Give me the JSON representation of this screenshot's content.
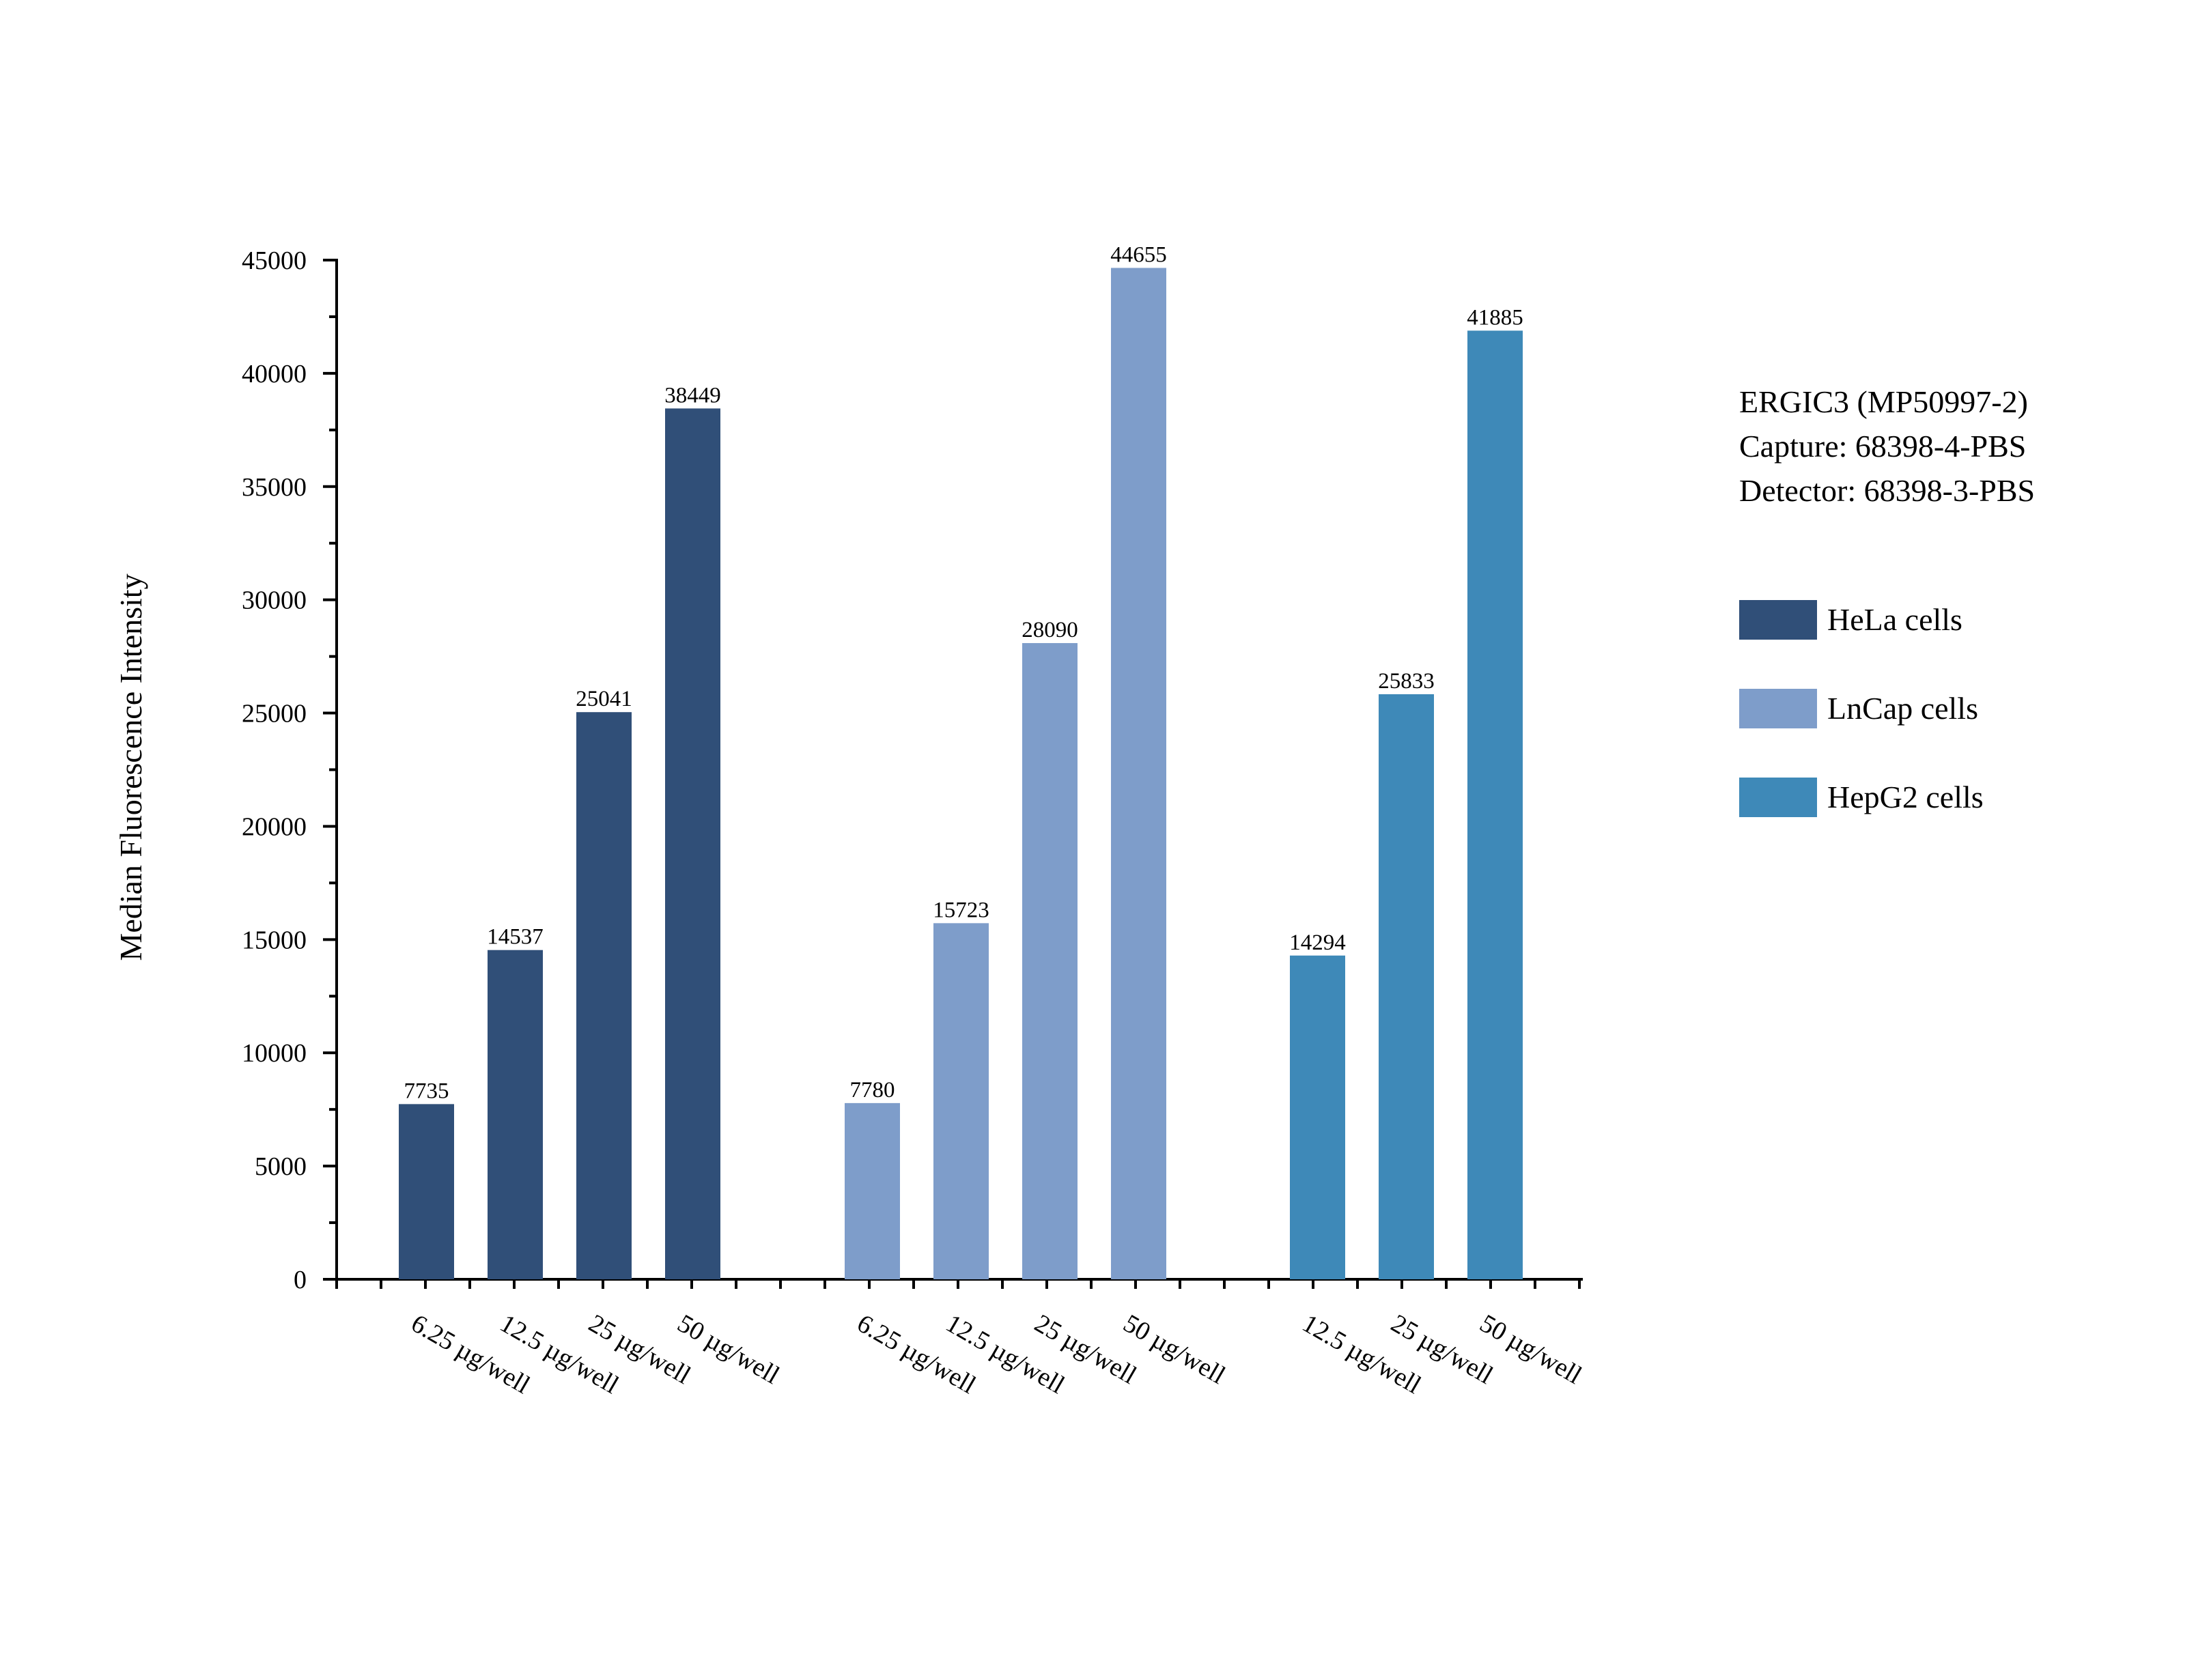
{
  "chart_data": {
    "type": "bar",
    "ylabel": "Median Fluorescence Intensity",
    "ylim": [
      0,
      45000
    ],
    "yticks": [
      "0",
      "5000",
      "10000",
      "15000",
      "20000",
      "25000",
      "30000",
      "35000",
      "40000",
      "45000"
    ],
    "info": [
      "ERGIC3 (MP50997-2)",
      "Capture: 68398-4-PBS",
      "Detector: 68398-3-PBS"
    ],
    "legend_position": "right",
    "grid": false,
    "series": [
      {
        "name": "HeLa cells",
        "color": "#304f78",
        "categories": [
          "6.25 µg/well",
          "12.5 µg/well",
          "25 µg/well",
          "50 µg/well"
        ],
        "values": [
          7735,
          14537,
          25041,
          38449
        ],
        "labels": [
          "7735",
          "14537",
          "25041",
          "38449"
        ]
      },
      {
        "name": "LnCap cells",
        "color": "#7e9dca",
        "categories": [
          "6.25 µg/well",
          "12.5 µg/well",
          "25 µg/well",
          "50 µg/well"
        ],
        "values": [
          7780,
          15723,
          28090,
          44655
        ],
        "labels": [
          "7780",
          "15723",
          "28090",
          "44655"
        ]
      },
      {
        "name": "HepG2 cells",
        "color": "#3e89b8",
        "categories": [
          "12.5 µg/well",
          "25 µg/well",
          "50 µg/well"
        ],
        "values": [
          14294,
          25833,
          41885
        ],
        "labels": [
          "14294",
          "25833",
          "41885"
        ]
      }
    ]
  }
}
